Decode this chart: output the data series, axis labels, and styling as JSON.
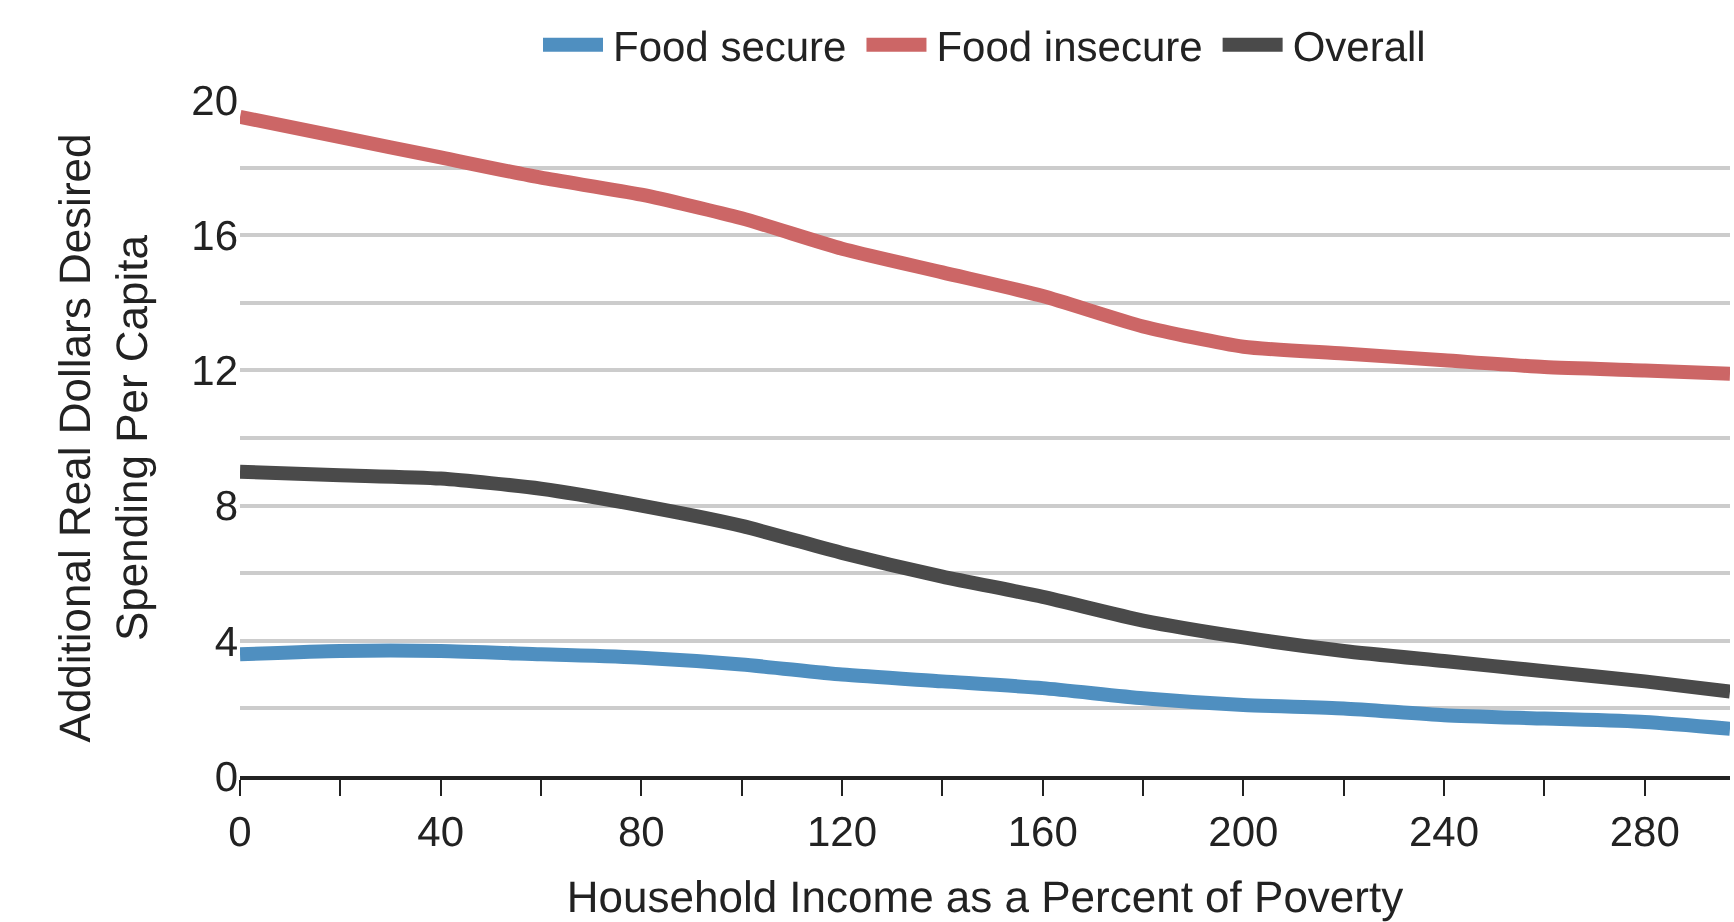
{
  "chart_data": {
    "type": "line",
    "xlabel": "Household Income as a Percent of Poverty",
    "ylabel": "Additional Real Dollars Desired\nSpending Per Capita",
    "x": [
      0,
      20,
      40,
      60,
      80,
      100,
      120,
      140,
      160,
      180,
      200,
      220,
      240,
      260,
      280,
      297
    ],
    "series": [
      {
        "name": "Food secure",
        "color": "#4f8fc0",
        "values": [
          3.6,
          3.7,
          3.7,
          3.6,
          3.5,
          3.3,
          3.0,
          2.8,
          2.6,
          2.3,
          2.1,
          2.0,
          1.8,
          1.7,
          1.6,
          1.4
        ]
      },
      {
        "name": "Food insecure",
        "color": "#cc6666",
        "values": [
          19.5,
          18.9,
          18.3,
          17.7,
          17.2,
          16.5,
          15.6,
          14.9,
          14.2,
          13.3,
          12.7,
          12.5,
          12.3,
          12.1,
          12.0,
          11.9
        ]
      },
      {
        "name": "Overall",
        "color": "#4a4a4a",
        "values": [
          9.0,
          8.9,
          8.8,
          8.5,
          8.0,
          7.4,
          6.6,
          5.9,
          5.3,
          4.6,
          4.1,
          3.7,
          3.4,
          3.1,
          2.8,
          2.5
        ]
      }
    ],
    "xlim": [
      0,
      297
    ],
    "xticks": [
      0,
      {
        "value": 20,
        "label": null
      },
      40,
      {
        "value": 60,
        "label": null
      },
      80,
      {
        "value": 100,
        "label": null
      },
      120,
      {
        "value": 140,
        "label": null
      },
      160,
      {
        "value": 180,
        "label": null
      },
      200,
      {
        "value": 220,
        "label": null
      },
      240,
      {
        "value": 260,
        "label": null
      },
      280
    ],
    "ylim": [
      0,
      20
    ],
    "yticks": [
      0,
      {
        "value": 2,
        "label": null
      },
      4,
      {
        "value": 6,
        "label": null
      },
      8,
      {
        "value": 10,
        "label": null
      },
      12,
      {
        "value": 14,
        "label": null
      },
      16,
      {
        "value": 18,
        "label": null
      },
      20
    ],
    "grid": "y",
    "legend": "top",
    "marker": "none",
    "line_style": "solid"
  }
}
